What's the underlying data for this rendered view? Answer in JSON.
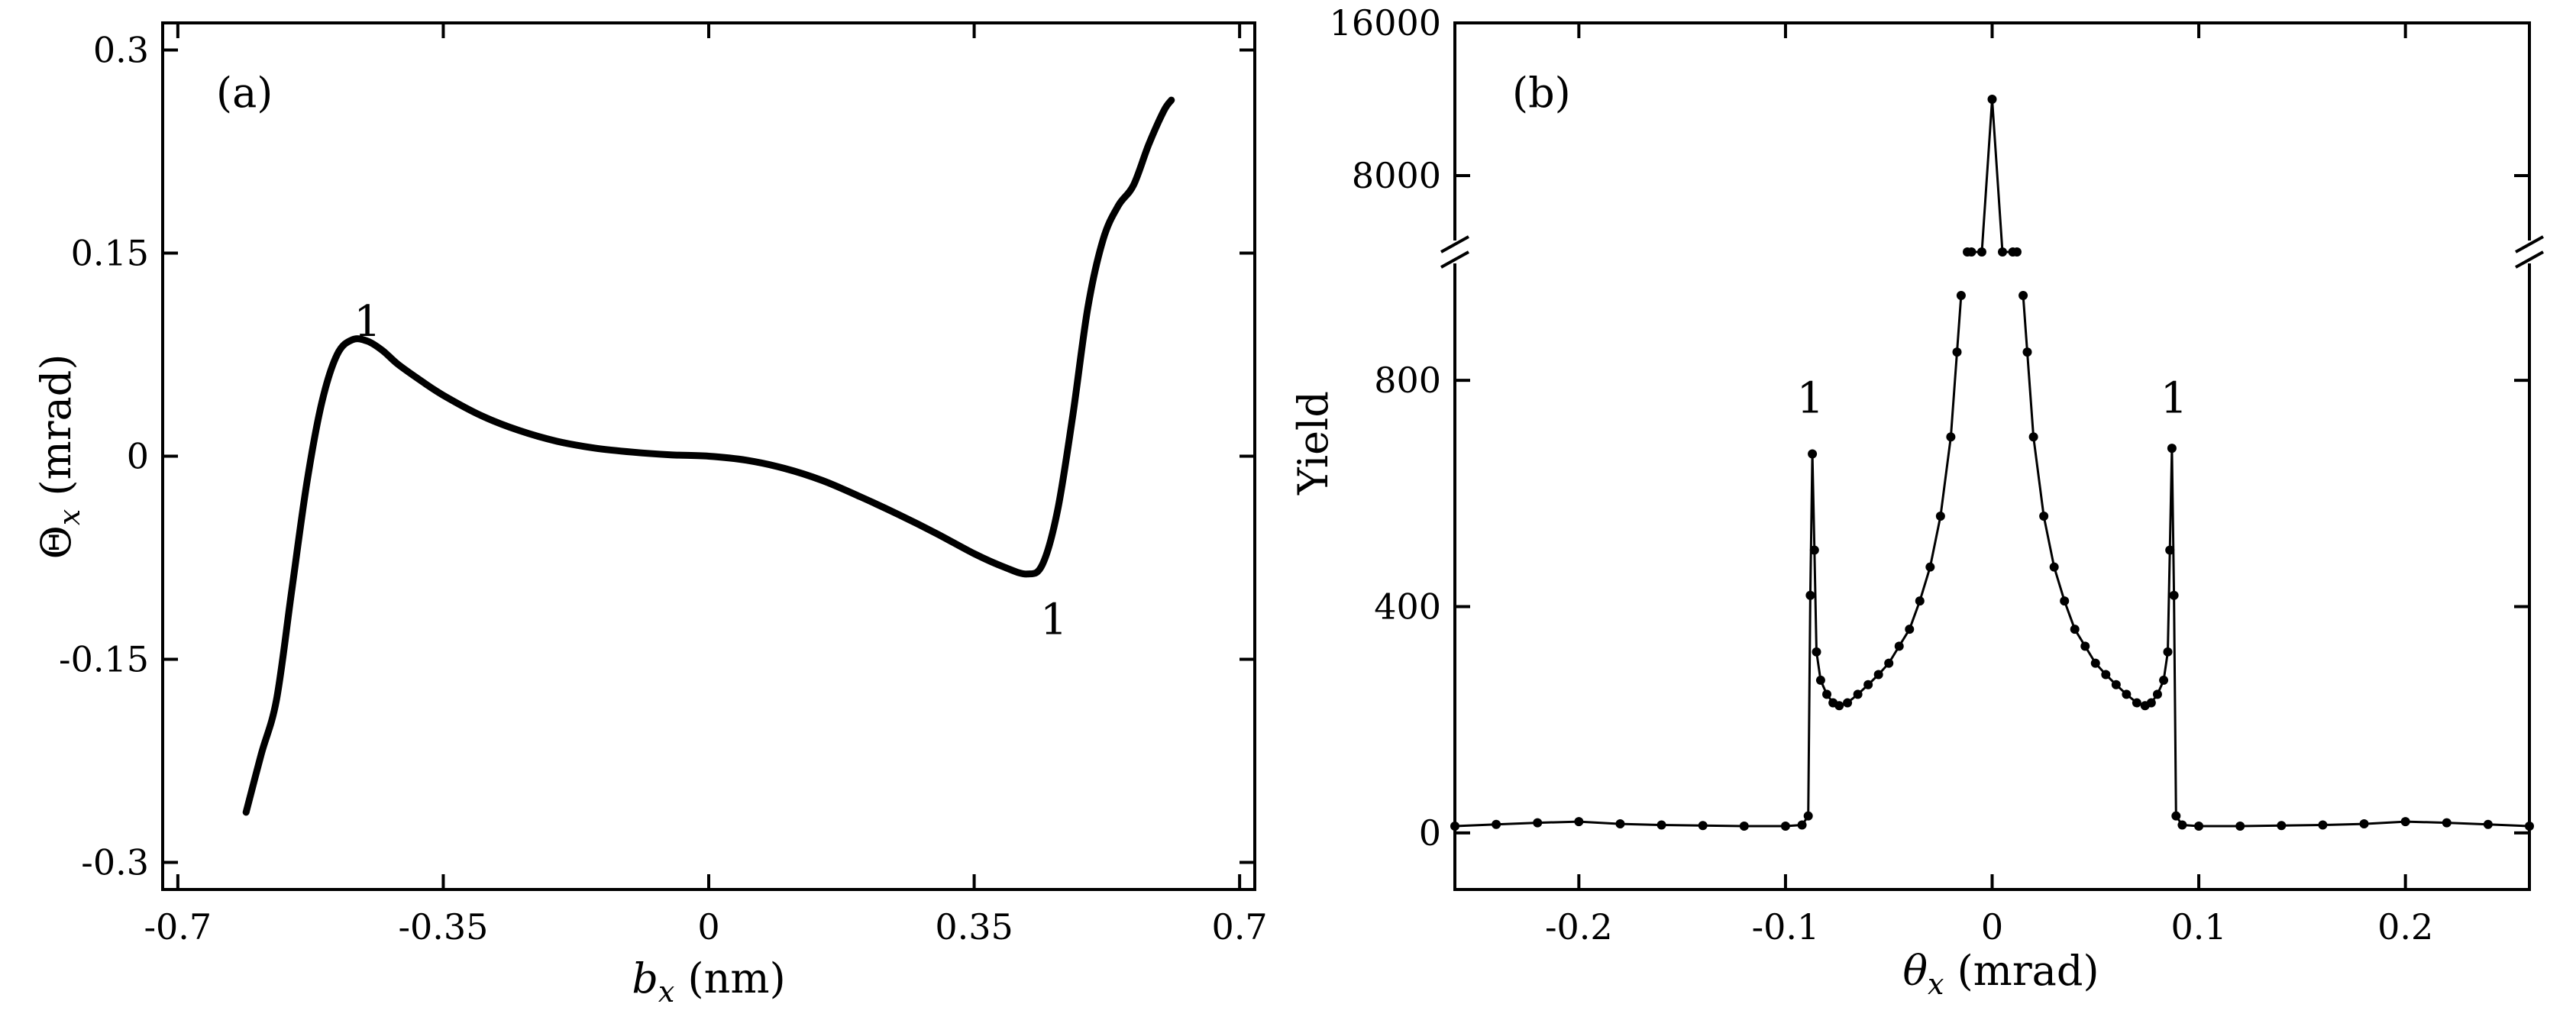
{
  "chart_data": [
    {
      "type": "line",
      "panel_label": "(a)",
      "xlabel": {
        "symbol": "b",
        "subscript": "x",
        "unit": "(nm)"
      },
      "ylabel": {
        "symbol": "Θ",
        "subscript": "x",
        "unit": "(mrad)"
      },
      "xlim": [
        -0.72,
        0.72
      ],
      "ylim": [
        -0.32,
        0.32
      ],
      "xticks": [
        -0.7,
        -0.35,
        0,
        0.35,
        0.7
      ],
      "xtick_labels": [
        "-0.7",
        "-0.35",
        "0",
        "0.35",
        "0.7"
      ],
      "yticks": [
        -0.3,
        -0.15,
        0,
        0.15,
        0.3
      ],
      "ytick_labels": [
        "-0.3",
        "-0.15",
        "0",
        "0.15",
        "0.3"
      ],
      "series": [
        {
          "x": [
            -0.61,
            -0.59,
            -0.57,
            -0.55,
            -0.53,
            -0.51,
            -0.49,
            -0.47,
            -0.45,
            -0.43,
            -0.41,
            -0.38,
            -0.35,
            -0.3,
            -0.25,
            -0.2,
            -0.15,
            -0.1,
            -0.05,
            0,
            0.05,
            0.1,
            0.15,
            0.2,
            0.25,
            0.3,
            0.35,
            0.39,
            0.42,
            0.44,
            0.46,
            0.48,
            0.5,
            0.52,
            0.54,
            0.56,
            0.58,
            0.6,
            0.61
          ],
          "y": [
            -0.263,
            -0.22,
            -0.18,
            -0.1,
            -0.02,
            0.04,
            0.075,
            0.086,
            0.085,
            0.078,
            0.068,
            0.056,
            0.045,
            0.03,
            0.019,
            0.011,
            0.006,
            0.003,
            0.001,
            0,
            -0.003,
            -0.009,
            -0.018,
            -0.03,
            -0.043,
            -0.057,
            -0.072,
            -0.082,
            -0.087,
            -0.08,
            -0.04,
            0.03,
            0.11,
            0.16,
            0.185,
            0.2,
            0.23,
            0.255,
            0.263
          ]
        }
      ],
      "annotations": [
        {
          "text": "1",
          "x": -0.45,
          "y": 0.1
        },
        {
          "text": "1",
          "x": 0.455,
          "y": -0.12
        }
      ]
    },
    {
      "type": "line",
      "panel_label": "(b)",
      "xlabel": {
        "symbol": "θ",
        "subscript": "x",
        "unit": "(mrad)"
      },
      "ylabel": "Yield",
      "xlim": [
        -0.26,
        0.26
      ],
      "ylim_lower": [
        -100,
        1000
      ],
      "ylim_upper": [
        4000,
        16000
      ],
      "broken_y_axis": true,
      "xticks": [
        -0.2,
        -0.1,
        0,
        0.1,
        0.2
      ],
      "xtick_labels": [
        "-0.2",
        "-0.1",
        "0",
        "0.1",
        "0.2"
      ],
      "yticks": [
        0,
        400,
        800,
        8000,
        16000
      ],
      "ytick_labels": [
        "0",
        "400",
        "800",
        "8000",
        "16000"
      ],
      "series": [
        {
          "x": [
            -0.26,
            -0.24,
            -0.22,
            -0.2,
            -0.18,
            -0.16,
            -0.14,
            -0.12,
            -0.1,
            -0.092,
            -0.089,
            -0.088,
            -0.087,
            -0.086,
            -0.085,
            -0.083,
            -0.08,
            -0.077,
            -0.074,
            -0.07,
            -0.065,
            -0.06,
            -0.055,
            -0.05,
            -0.045,
            -0.04,
            -0.035,
            -0.03,
            -0.025,
            -0.02,
            -0.017,
            -0.015,
            -0.012,
            -0.01,
            -0.005,
            0,
            0.005,
            0.01,
            0.012,
            0.015,
            0.017,
            0.02,
            0.025,
            0.03,
            0.035,
            0.04,
            0.045,
            0.05,
            0.055,
            0.06,
            0.065,
            0.07,
            0.074,
            0.077,
            0.08,
            0.083,
            0.085,
            0.086,
            0.087,
            0.088,
            0.089,
            0.092,
            0.1,
            0.12,
            0.14,
            0.16,
            0.18,
            0.2,
            0.22,
            0.24,
            0.26
          ],
          "y": [
            12,
            15,
            18,
            20,
            16,
            14,
            13,
            12,
            12,
            14,
            30,
            420,
            670,
            500,
            320,
            270,
            245,
            230,
            225,
            230,
            245,
            262,
            280,
            300,
            330,
            360,
            410,
            470,
            560,
            700,
            850,
            950,
            1100,
            1400,
            3000,
            12000,
            3000,
            1400,
            1100,
            950,
            850,
            700,
            560,
            470,
            410,
            360,
            330,
            300,
            280,
            262,
            245,
            230,
            225,
            230,
            245,
            270,
            320,
            500,
            680,
            420,
            30,
            14,
            12,
            12,
            13,
            14,
            16,
            20,
            18,
            15,
            12
          ]
        }
      ],
      "annotations": [
        {
          "text": "1",
          "x": -0.088,
          "y": 770
        },
        {
          "text": "1",
          "x": 0.088,
          "y": 770
        }
      ]
    }
  ]
}
